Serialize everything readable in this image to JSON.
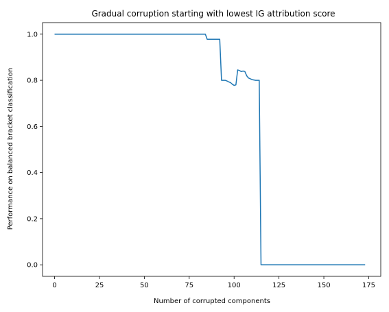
{
  "chart_data": {
    "type": "line",
    "title": "Gradual corruption starting with lowest IG attribution score",
    "xlabel": "Number of corrupted components",
    "ylabel": "Performance on balanced bracket classification",
    "xlim": [
      -6.7,
      181.7
    ],
    "ylim": [
      -0.05,
      1.05
    ],
    "grid": false,
    "xticks": [
      0,
      25,
      50,
      75,
      100,
      125,
      150,
      175
    ],
    "xtick_labels": [
      "0",
      "25",
      "50",
      "75",
      "100",
      "125",
      "150",
      "175"
    ],
    "yticks": [
      0.0,
      0.2,
      0.4,
      0.6,
      0.8,
      1.0
    ],
    "ytick_labels": [
      "0.0",
      "0.2",
      "0.4",
      "0.6",
      "0.8",
      "1.0"
    ],
    "series": [
      {
        "color": "#1f77b4",
        "x": [
          0,
          84,
          85,
          86,
          92,
          93,
          95,
          96,
          97,
          98,
          99,
          100,
          101,
          102,
          103,
          104,
          105,
          106,
          107,
          108,
          110,
          112,
          114,
          115,
          116,
          173
        ],
        "y": [
          1.0,
          1.0,
          0.978,
          0.978,
          0.978,
          0.8,
          0.8,
          0.797,
          0.793,
          0.79,
          0.783,
          0.778,
          0.78,
          0.845,
          0.842,
          0.838,
          0.84,
          0.838,
          0.82,
          0.81,
          0.803,
          0.8,
          0.8,
          0.0,
          0.0,
          0.0
        ]
      }
    ]
  }
}
